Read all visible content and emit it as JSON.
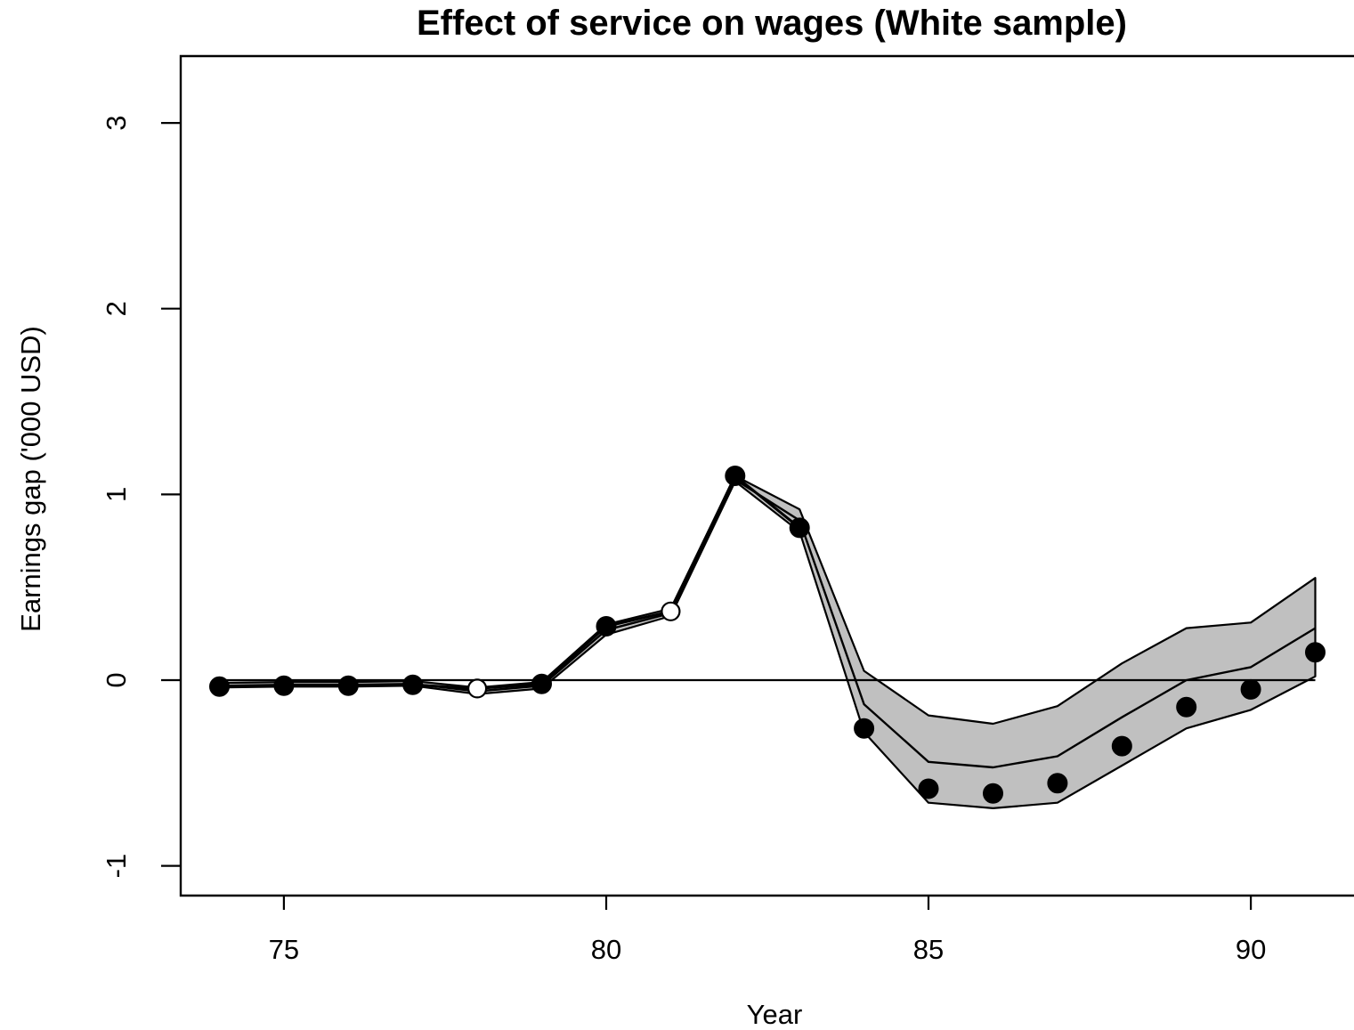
{
  "chart_data": {
    "type": "line",
    "title": "Effect of service on wages (White sample)",
    "xlabel": "Year",
    "ylabel": "Earnings gap ('000 USD)",
    "xlim": [
      73.4,
      91.6
    ],
    "ylim": [
      -1.16,
      3.36
    ],
    "xticks": [
      75,
      80,
      85,
      90
    ],
    "yticks": [
      -1,
      0,
      1,
      2,
      3
    ],
    "x_tick_labels": [
      "75",
      "80",
      "85",
      "90"
    ],
    "y_tick_labels": [
      "-1",
      "0",
      "1",
      "2",
      "3"
    ],
    "reference_line_y": 0,
    "grid": false,
    "legend": "none",
    "x": [
      74,
      75,
      76,
      77,
      78,
      79,
      80,
      81,
      82,
      83,
      84,
      85,
      86,
      87,
      88,
      89,
      90,
      91
    ],
    "series": [
      {
        "role": "observed points",
        "values": [
          -0.035,
          -0.03,
          -0.03,
          -0.025,
          -0.045,
          -0.02,
          0.29,
          0.37,
          1.1,
          0.82,
          -0.26,
          -0.585,
          -0.61,
          -0.555,
          -0.355,
          -0.145,
          -0.05,
          0.15
        ],
        "marker_filled": [
          true,
          true,
          true,
          true,
          false,
          true,
          true,
          false,
          true,
          true,
          true,
          true,
          true,
          true,
          true,
          true,
          true,
          true
        ]
      },
      {
        "role": "synthetic control (center line)",
        "values": [
          -0.03,
          -0.025,
          -0.025,
          -0.02,
          -0.06,
          -0.03,
          0.27,
          0.36,
          1.08,
          0.86,
          -0.13,
          -0.44,
          -0.47,
          -0.41,
          -0.2,
          0.0,
          0.07,
          0.28
        ]
      },
      {
        "role": "band upper bound",
        "values": [
          -0.015,
          -0.01,
          -0.01,
          -0.005,
          -0.04,
          -0.01,
          0.3,
          0.385,
          1.1,
          0.92,
          0.05,
          -0.19,
          -0.235,
          -0.14,
          0.09,
          0.28,
          0.31,
          0.55
        ]
      },
      {
        "role": "band lower bound",
        "values": [
          -0.04,
          -0.035,
          -0.035,
          -0.03,
          -0.075,
          -0.045,
          0.245,
          0.345,
          1.07,
          0.8,
          -0.28,
          -0.66,
          -0.69,
          -0.66,
          -0.46,
          -0.26,
          -0.16,
          0.02
        ]
      }
    ],
    "colors": {
      "band_fill": "#c0c0c0",
      "line": "#000000",
      "point": "#000000",
      "background": "#ffffff"
    }
  }
}
